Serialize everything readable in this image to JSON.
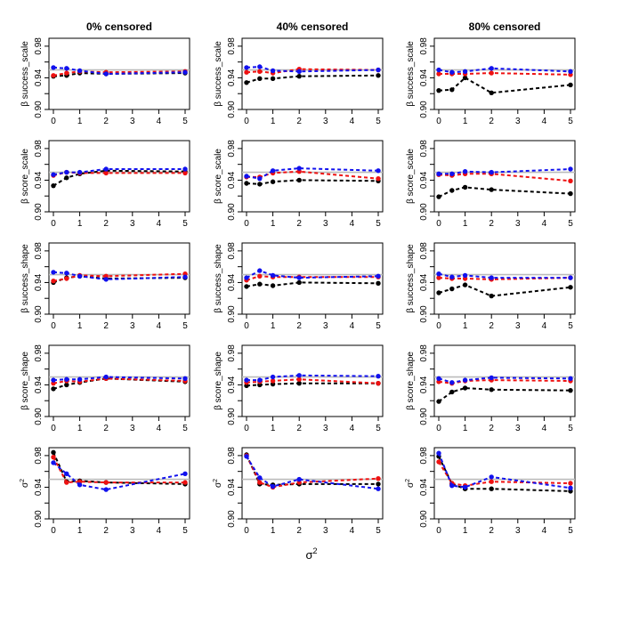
{
  "colors": {
    "black": "#000000",
    "red": "#ee1111",
    "blue": "#1111ee",
    "reference": "#bbbbbb"
  },
  "chart_data": {
    "type": "line",
    "figure_xlabel": "σ",
    "figure_xlabel_sup": "2",
    "column_titles": [
      "0% censored",
      "40% censored",
      "80% censored"
    ],
    "row_ylabels": [
      {
        "base": "β success_scale"
      },
      {
        "base": "β score_scale"
      },
      {
        "base": "β success_shape"
      },
      {
        "base": "β score_shape"
      },
      {
        "base": "σ",
        "sup": "2"
      }
    ],
    "x": [
      0,
      0.5,
      1,
      2,
      5
    ],
    "xticks": [
      0,
      1,
      2,
      3,
      4,
      5
    ],
    "xlim": [
      0,
      5
    ],
    "ylim": [
      0.9,
      0.99
    ],
    "yticks": [
      0.9,
      0.94,
      0.98
    ],
    "yticklabels": [
      "0.90",
      "0.94",
      "0.98"
    ],
    "yminor": [
      0.92,
      0.96
    ],
    "reference_line": 0.95,
    "series_colors": [
      "black",
      "red",
      "blue"
    ],
    "panels": [
      [
        {
          "black": [
            0.942,
            0.943,
            0.946,
            0.945,
            0.946
          ],
          "red": [
            0.943,
            0.946,
            0.948,
            0.947,
            0.948
          ],
          "blue": [
            0.953,
            0.952,
            0.949,
            0.945,
            0.947
          ]
        },
        {
          "black": [
            0.933,
            0.943,
            0.948,
            0.952,
            0.951
          ],
          "red": [
            0.946,
            0.95,
            0.949,
            0.949,
            0.949
          ],
          "blue": [
            0.947,
            0.95,
            0.95,
            0.954,
            0.954
          ]
        },
        {
          "black": [
            0.94,
            0.946,
            0.948,
            0.945,
            0.946
          ],
          "red": [
            0.942,
            0.945,
            0.949,
            0.948,
            0.951
          ],
          "blue": [
            0.953,
            0.952,
            0.948,
            0.944,
            0.947
          ]
        },
        {
          "black": [
            0.935,
            0.94,
            0.943,
            0.948,
            0.944
          ],
          "red": [
            0.942,
            0.945,
            0.944,
            0.948,
            0.945
          ],
          "blue": [
            0.946,
            0.947,
            0.947,
            0.95,
            0.948
          ]
        },
        {
          "black": [
            0.984,
            0.947,
            0.948,
            0.946,
            0.944
          ],
          "red": [
            0.978,
            0.946,
            0.947,
            0.946,
            0.946
          ],
          "blue": [
            0.971,
            0.957,
            0.943,
            0.937,
            0.957
          ]
        }
      ],
      [
        {
          "black": [
            0.934,
            0.939,
            0.939,
            0.942,
            0.943
          ],
          "red": [
            0.947,
            0.948,
            0.946,
            0.951,
            0.95
          ],
          "blue": [
            0.953,
            0.954,
            0.949,
            0.948,
            0.95
          ]
        },
        {
          "black": [
            0.936,
            0.935,
            0.938,
            0.94,
            0.939
          ],
          "red": [
            0.944,
            0.944,
            0.949,
            0.951,
            0.942
          ],
          "blue": [
            0.945,
            0.942,
            0.952,
            0.955,
            0.952
          ]
        },
        {
          "black": [
            0.935,
            0.938,
            0.936,
            0.94,
            0.939
          ],
          "red": [
            0.943,
            0.948,
            0.947,
            0.947,
            0.947
          ],
          "blue": [
            0.946,
            0.955,
            0.949,
            0.946,
            0.948
          ]
        },
        {
          "black": [
            0.939,
            0.94,
            0.941,
            0.942,
            0.942
          ],
          "red": [
            0.943,
            0.944,
            0.945,
            0.947,
            0.942
          ],
          "blue": [
            0.946,
            0.946,
            0.95,
            0.952,
            0.951
          ]
        },
        {
          "black": [
            0.981,
            0.944,
            0.943,
            0.944,
            0.944
          ],
          "red": [
            0.98,
            0.946,
            0.94,
            0.946,
            0.951
          ],
          "blue": [
            0.979,
            0.952,
            0.941,
            0.95,
            0.938
          ]
        }
      ],
      [
        {
          "black": [
            0.924,
            0.925,
            0.94,
            0.921,
            0.931
          ],
          "red": [
            0.945,
            0.945,
            0.945,
            0.946,
            0.944
          ],
          "blue": [
            0.95,
            0.947,
            0.948,
            0.952,
            0.948
          ]
        },
        {
          "black": [
            0.919,
            0.927,
            0.931,
            0.928,
            0.923
          ],
          "red": [
            0.947,
            0.946,
            0.948,
            0.948,
            0.939
          ],
          "blue": [
            0.948,
            0.948,
            0.951,
            0.95,
            0.954
          ]
        },
        {
          "black": [
            0.927,
            0.932,
            0.937,
            0.923,
            0.934
          ],
          "red": [
            0.946,
            0.945,
            0.945,
            0.944,
            0.946
          ],
          "blue": [
            0.951,
            0.947,
            0.949,
            0.946,
            0.946
          ]
        },
        {
          "black": [
            0.919,
            0.931,
            0.936,
            0.934,
            0.933
          ],
          "red": [
            0.944,
            0.942,
            0.945,
            0.946,
            0.945
          ],
          "blue": [
            0.948,
            0.943,
            0.946,
            0.949,
            0.948
          ]
        },
        {
          "black": [
            0.979,
            0.944,
            0.938,
            0.938,
            0.935
          ],
          "red": [
            0.972,
            0.945,
            0.942,
            0.947,
            0.945
          ],
          "blue": [
            0.983,
            0.942,
            0.94,
            0.953,
            0.939
          ]
        }
      ]
    ]
  }
}
